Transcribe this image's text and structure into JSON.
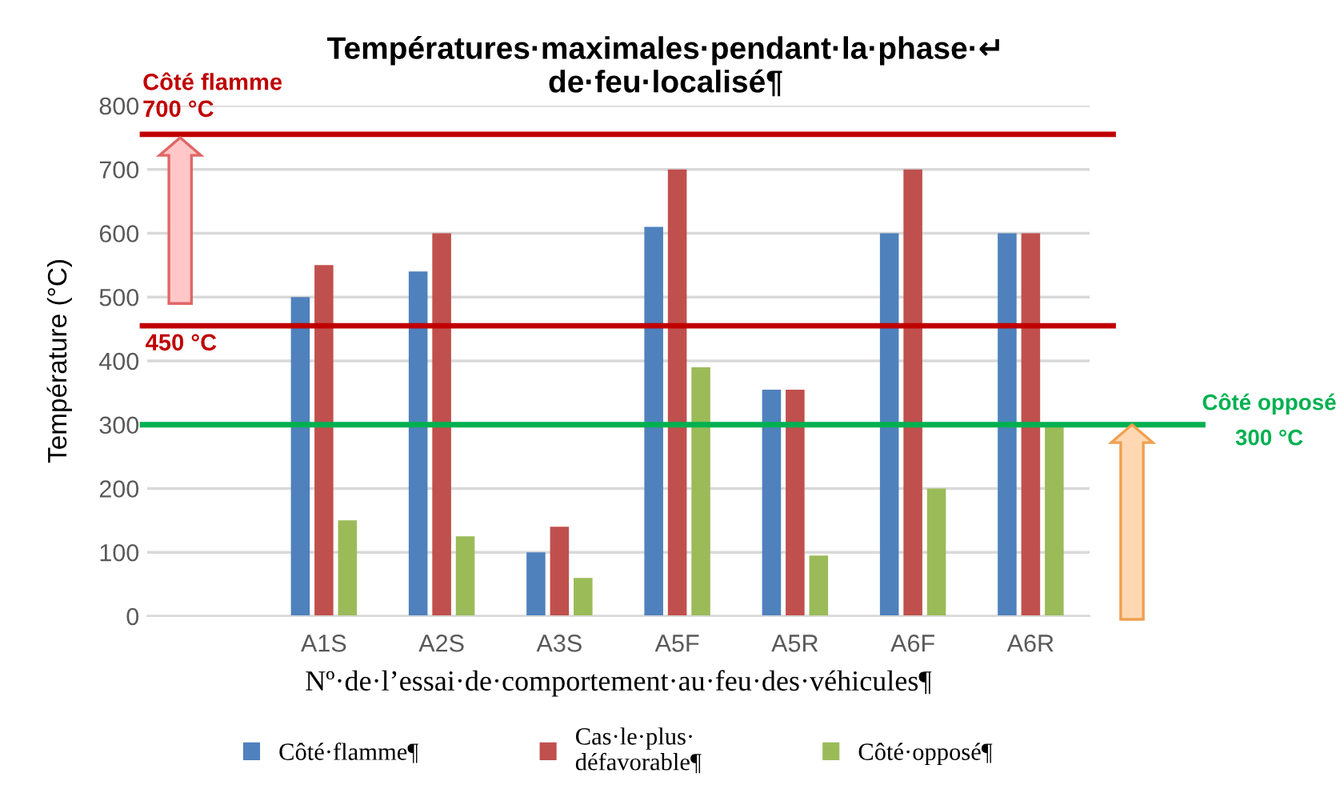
{
  "chart_data": {
    "type": "bar",
    "title": "Températures·maximales·pendant·la·phase·↵\nde·feu·localisé¶",
    "xlabel": "Nº·de·l’essai·de·comportement·au·feu·des·véhicules¶",
    "ylabel": "Température (°C)",
    "categories": [
      null,
      "A1S",
      "A2S",
      "A3S",
      "A5F",
      "A5R",
      "A6F",
      "A6R"
    ],
    "series": [
      {
        "name": "Côté·flamme¶",
        "color": "#4f81bd",
        "values": [
          null,
          500,
          540,
          100,
          610,
          355,
          600,
          600
        ]
      },
      {
        "name": "Cas·le·plus·\ndéfavorable¶",
        "color": "#c0504d",
        "values": [
          null,
          550,
          600,
          140,
          700,
          355,
          700,
          600
        ]
      },
      {
        "name": "Côté·opposé¶",
        "color": "#9bbb59",
        "values": [
          null,
          150,
          125,
          60,
          390,
          95,
          200,
          300
        ]
      }
    ],
    "ylim": [
      0,
      800
    ],
    "yticks": [
      0,
      100,
      200,
      300,
      400,
      500,
      600,
      700,
      800
    ],
    "grid": "y",
    "legend": "bottom",
    "ref_lines": [
      {
        "axis": "y",
        "value": 755,
        "label": "Côté flamme\n700 °C",
        "color": "#c00000"
      },
      {
        "axis": "y",
        "value": 455,
        "label": "450 °C",
        "color": "#c00000"
      },
      {
        "axis": "y",
        "value": 300,
        "label": "Côté opposé\n300 °C",
        "color": "#00b050"
      }
    ]
  }
}
